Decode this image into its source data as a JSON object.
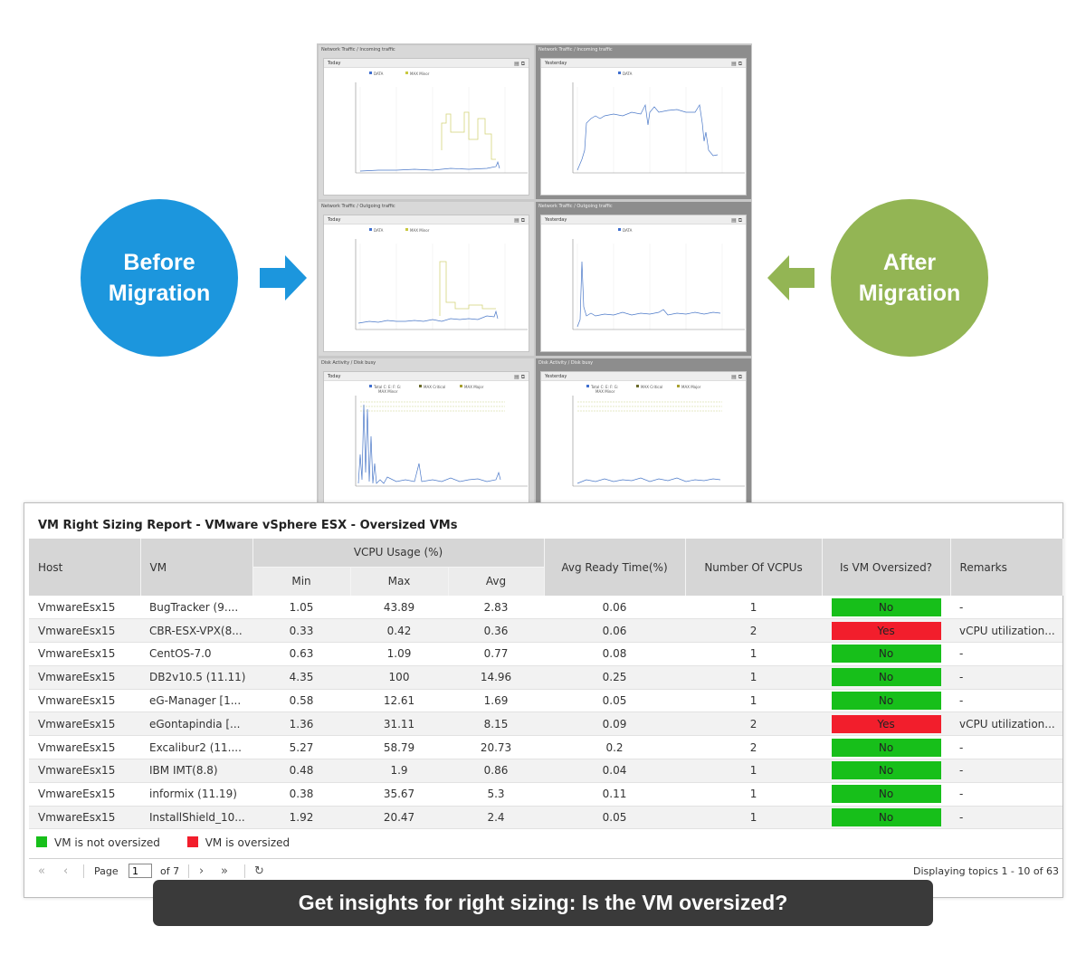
{
  "before_label": {
    "line1": "Before",
    "line2": "Migration"
  },
  "after_label": {
    "line1": "After",
    "line2": "Migration"
  },
  "charts": [
    {
      "title": "Network Traffic / Incoming traffic",
      "period": "Today",
      "legend": [
        "DATA",
        "MAX Minor"
      ]
    },
    {
      "title": "Network Traffic / Incoming traffic",
      "period": "Yesterday",
      "legend": [
        "DATA"
      ]
    },
    {
      "title": "Network Traffic / Outgoing traffic",
      "period": "Today",
      "legend": [
        "DATA",
        "MAX Minor"
      ]
    },
    {
      "title": "Network Traffic / Outgoing traffic",
      "period": "Yesterday",
      "legend": [
        "DATA"
      ]
    },
    {
      "title": "Disk Activity / Disk busy",
      "period": "Today",
      "legend": [
        "Total C: E: F: G:",
        "MAX Critical",
        "MAX Major",
        "MAX Minor"
      ]
    },
    {
      "title": "Disk Activity / Disk busy",
      "period": "Yesterday",
      "legend": [
        "Total C: E: F: G:",
        "MAX Critical",
        "MAX Major",
        "MAX Minor"
      ]
    }
  ],
  "report": {
    "title": "VM Right Sizing Report - VMware vSphere ESX - Oversized VMs",
    "headers": {
      "host": "Host",
      "vm": "VM",
      "vcpu_usage": "VCPU Usage (%)",
      "min": "Min",
      "max": "Max",
      "avg": "Avg",
      "ready": "Avg Ready Time(%)",
      "vcpus": "Number Of VCPUs",
      "oversized": "Is VM Oversized?",
      "remarks": "Remarks"
    },
    "rows": [
      {
        "host": "VmwareEsx15",
        "vm": "BugTracker (9....",
        "min": "1.05",
        "max": "43.89",
        "avg": "2.83",
        "ready": "0.06",
        "vcpus": "1",
        "oversized": "No",
        "remarks": "-"
      },
      {
        "host": "VmwareEsx15",
        "vm": "CBR-ESX-VPX(8...",
        "min": "0.33",
        "max": "0.42",
        "avg": "0.36",
        "ready": "0.06",
        "vcpus": "2",
        "oversized": "Yes",
        "remarks": "vCPU utilization..."
      },
      {
        "host": "VmwareEsx15",
        "vm": "CentOS-7.0",
        "min": "0.63",
        "max": "1.09",
        "avg": "0.77",
        "ready": "0.08",
        "vcpus": "1",
        "oversized": "No",
        "remarks": "-"
      },
      {
        "host": "VmwareEsx15",
        "vm": "DB2v10.5 (11.11)",
        "min": "4.35",
        "max": "100",
        "avg": "14.96",
        "ready": "0.25",
        "vcpus": "1",
        "oversized": "No",
        "remarks": "-"
      },
      {
        "host": "VmwareEsx15",
        "vm": "eG-Manager [1...",
        "min": "0.58",
        "max": "12.61",
        "avg": "1.69",
        "ready": "0.05",
        "vcpus": "1",
        "oversized": "No",
        "remarks": "-"
      },
      {
        "host": "VmwareEsx15",
        "vm": "eGontapindia [...",
        "min": "1.36",
        "max": "31.11",
        "avg": "8.15",
        "ready": "0.09",
        "vcpus": "2",
        "oversized": "Yes",
        "remarks": "vCPU utilization..."
      },
      {
        "host": "VmwareEsx15",
        "vm": "Excalibur2 (11....",
        "min": "5.27",
        "max": "58.79",
        "avg": "20.73",
        "ready": "0.2",
        "vcpus": "2",
        "oversized": "No",
        "remarks": "-"
      },
      {
        "host": "VmwareEsx15",
        "vm": "IBM IMT(8.8)",
        "min": "0.48",
        "max": "1.9",
        "avg": "0.86",
        "ready": "0.04",
        "vcpus": "1",
        "oversized": "No",
        "remarks": "-"
      },
      {
        "host": "VmwareEsx15",
        "vm": "informix (11.19)",
        "min": "0.38",
        "max": "35.67",
        "avg": "5.3",
        "ready": "0.11",
        "vcpus": "1",
        "oversized": "No",
        "remarks": "-"
      },
      {
        "host": "VmwareEsx15",
        "vm": "InstallShield_10...",
        "min": "1.92",
        "max": "20.47",
        "avg": "2.4",
        "ready": "0.05",
        "vcpus": "1",
        "oversized": "No",
        "remarks": "-"
      }
    ],
    "legend": {
      "not_oversized": "VM is not oversized",
      "oversized": "VM is oversized"
    },
    "colors": {
      "no": "#17bf1a",
      "yes": "#f21e2c",
      "before": "#1c96dd",
      "after": "#93b554"
    },
    "pager": {
      "page_label": "Page",
      "page_value": "1",
      "of_label": "of 7",
      "display": "Displaying topics 1 - 10 of 63"
    }
  },
  "banner": "Get insights for right sizing: Is the VM oversized?"
}
